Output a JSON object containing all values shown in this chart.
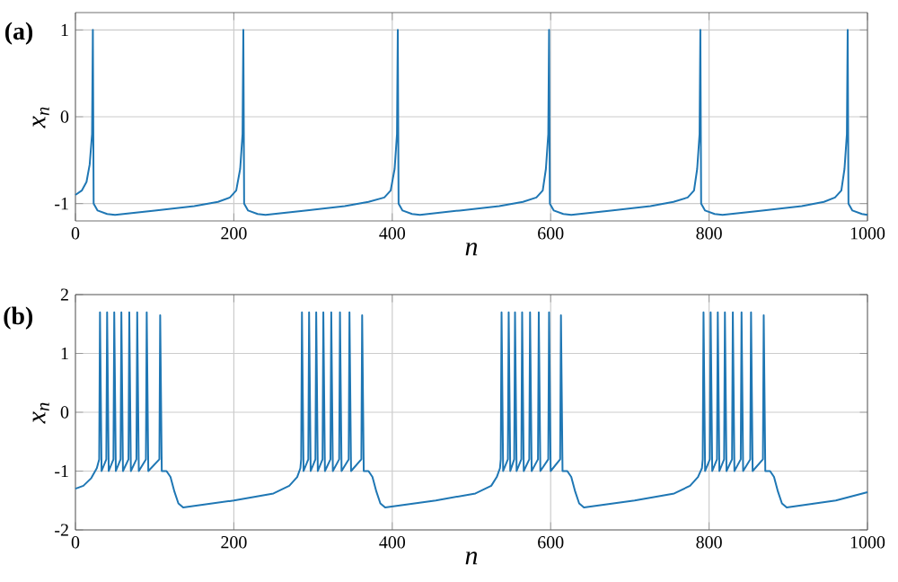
{
  "chart_data": [
    {
      "type": "line",
      "xlabel": "n",
      "ylabel": "x$_{n}$",
      "annotations": [
        "(a)"
      ],
      "xlim": [
        0,
        1000
      ],
      "ylim": [
        -1.2,
        1.2
      ],
      "xticks": [
        0,
        200,
        400,
        600,
        800,
        1000
      ],
      "yticks": [
        -1,
        0,
        1
      ],
      "grid": true,
      "series": [
        {
          "color": "#1f77b4",
          "x": [
            0,
            8,
            14,
            18,
            21,
            22,
            23,
            28,
            40,
            50,
            100,
            150,
            180,
            195,
            203,
            208,
            211,
            212,
            213,
            218,
            230,
            240,
            290,
            340,
            370,
            390,
            398,
            403,
            406,
            407,
            408,
            413,
            425,
            435,
            485,
            535,
            565,
            582,
            590,
            594,
            597,
            598,
            599,
            604,
            616,
            626,
            676,
            726,
            755,
            773,
            781,
            785,
            788,
            789,
            790,
            795,
            807,
            817,
            867,
            917,
            945,
            959,
            967,
            971,
            974,
            975,
            976,
            981,
            993,
            1000
          ],
          "values": [
            -0.9,
            -0.85,
            -0.75,
            -0.55,
            -0.2,
            1,
            -1.0,
            -1.08,
            -1.12,
            -1.13,
            -1.08,
            -1.03,
            -0.98,
            -0.93,
            -0.85,
            -0.6,
            -0.2,
            1,
            -1.0,
            -1.08,
            -1.12,
            -1.13,
            -1.08,
            -1.03,
            -0.98,
            -0.93,
            -0.85,
            -0.6,
            -0.2,
            1,
            -1.0,
            -1.08,
            -1.12,
            -1.13,
            -1.08,
            -1.03,
            -0.98,
            -0.93,
            -0.85,
            -0.6,
            -0.2,
            1,
            -1.0,
            -1.08,
            -1.12,
            -1.13,
            -1.08,
            -1.03,
            -0.98,
            -0.93,
            -0.85,
            -0.6,
            -0.2,
            1,
            -1.0,
            -1.08,
            -1.12,
            -1.13,
            -1.08,
            -1.03,
            -0.98,
            -0.93,
            -0.85,
            -0.6,
            -0.2,
            1,
            -1.0,
            -1.08,
            -1.12,
            -1.13
          ]
        }
      ]
    },
    {
      "type": "line",
      "xlabel": "n",
      "ylabel": "x$_{n}$",
      "annotations": [
        "(b)"
      ],
      "xlim": [
        0,
        1000
      ],
      "ylim": [
        -2,
        2
      ],
      "xticks": [
        0,
        200,
        400,
        600,
        800,
        1000
      ],
      "yticks": [
        -2,
        -1,
        0,
        1,
        2
      ],
      "grid": true,
      "series": [
        {
          "color": "#1f77b4",
          "x": [
            0,
            10,
            20,
            27,
            30,
            31,
            33,
            39,
            40,
            42,
            48,
            49,
            51,
            57,
            58,
            60,
            67,
            68,
            70,
            77,
            78,
            80,
            89,
            90,
            92,
            106,
            107,
            109,
            115,
            120,
            125,
            130,
            136,
            200,
            250,
            270,
            280,
            284,
            285,
            286,
            288,
            294,
            295,
            297,
            303,
            304,
            306,
            312,
            313,
            315,
            322,
            323,
            325,
            333,
            334,
            336,
            345,
            346,
            348,
            361,
            362,
            364,
            370,
            375,
            380,
            385,
            391,
            455,
            505,
            525,
            532,
            536,
            537,
            538,
            540,
            546,
            547,
            549,
            554,
            555,
            557,
            563,
            564,
            566,
            573,
            574,
            576,
            584,
            585,
            587,
            597,
            598,
            600,
            612,
            613,
            615,
            621,
            626,
            631,
            636,
            642,
            706,
            756,
            776,
            786,
            791,
            792,
            793,
            795,
            801,
            802,
            804,
            810,
            811,
            813,
            819,
            820,
            822,
            829,
            830,
            832,
            840,
            841,
            843,
            852,
            853,
            855,
            868,
            869,
            871,
            877,
            882,
            887,
            892,
            898,
            960,
            1000
          ],
          "values": [
            -1.3,
            -1.25,
            -1.12,
            -0.95,
            -0.8,
            1.7,
            -1.0,
            -0.8,
            1.7,
            -1.0,
            -0.8,
            1.7,
            -1.0,
            -0.8,
            1.7,
            -1.0,
            -0.8,
            1.7,
            -1.0,
            -0.8,
            1.7,
            -1.0,
            -0.8,
            1.7,
            -1.0,
            -0.8,
            1.65,
            -1.0,
            -1.0,
            -1.1,
            -1.35,
            -1.55,
            -1.62,
            -1.5,
            -1.38,
            -1.25,
            -1.1,
            -0.95,
            -0.8,
            1.7,
            -1.0,
            -0.8,
            1.7,
            -1.0,
            -0.8,
            1.7,
            -1.0,
            -0.8,
            1.7,
            -1.0,
            -0.8,
            1.7,
            -1.0,
            -0.8,
            1.7,
            -1.0,
            -0.8,
            1.7,
            -1.0,
            -0.8,
            1.65,
            -1.0,
            -1.0,
            -1.1,
            -1.35,
            -1.55,
            -1.62,
            -1.5,
            -1.38,
            -1.25,
            -1.1,
            -0.95,
            -0.8,
            1.7,
            -1.0,
            -0.8,
            1.7,
            -1.0,
            -0.8,
            1.7,
            -1.0,
            -0.8,
            1.7,
            -1.0,
            -0.8,
            1.7,
            -1.0,
            -0.8,
            1.7,
            -1.0,
            -0.8,
            1.7,
            -1.0,
            -0.8,
            1.65,
            -1.0,
            -1.0,
            -1.1,
            -1.35,
            -1.55,
            -1.62,
            -1.5,
            -1.38,
            -1.25,
            -1.1,
            -0.95,
            -0.8,
            1.7,
            -1.0,
            -0.8,
            1.7,
            -1.0,
            -0.8,
            1.7,
            -1.0,
            -0.8,
            1.7,
            -1.0,
            -0.8,
            1.7,
            -1.0,
            -0.8,
            1.7,
            -1.0,
            -0.8,
            1.7,
            -1.0,
            -0.8,
            1.65,
            -1.0,
            -1.0,
            -1.1,
            -1.35,
            -1.55,
            -1.62,
            -1.5,
            -1.36
          ]
        }
      ]
    }
  ]
}
